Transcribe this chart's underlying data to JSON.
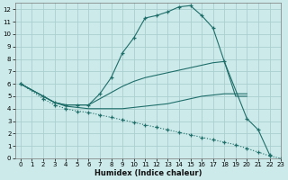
{
  "xlabel": "Humidex (Indice chaleur)",
  "bg_color": "#cdeaea",
  "grid_color": "#aacfcf",
  "line_color": "#1e6e6a",
  "xlim": [
    -0.5,
    23
  ],
  "ylim": [
    0,
    12.5
  ],
  "xticks": [
    0,
    1,
    2,
    3,
    4,
    5,
    6,
    7,
    8,
    9,
    10,
    11,
    12,
    13,
    14,
    15,
    16,
    17,
    18,
    19,
    20,
    21,
    22,
    23
  ],
  "yticks": [
    0,
    1,
    2,
    3,
    4,
    5,
    6,
    7,
    8,
    9,
    10,
    11,
    12
  ],
  "series": [
    {
      "x": [
        0,
        2,
        3,
        4,
        5,
        6,
        7,
        8,
        9,
        10,
        11,
        12,
        13,
        14,
        15,
        16,
        17,
        18,
        20,
        21,
        22
      ],
      "y": [
        6.0,
        5.0,
        4.5,
        4.3,
        4.3,
        4.3,
        5.2,
        6.5,
        8.5,
        9.7,
        11.3,
        11.5,
        11.8,
        12.2,
        12.3,
        11.5,
        10.5,
        7.8,
        3.2,
        2.3,
        0.3
      ],
      "marker": true,
      "dotted": false
    },
    {
      "x": [
        0,
        2,
        3,
        4,
        5,
        6,
        7,
        8,
        9,
        10,
        11,
        12,
        13,
        14,
        15,
        16,
        17,
        18,
        19,
        20
      ],
      "y": [
        6.0,
        5.0,
        4.5,
        4.3,
        4.3,
        4.3,
        4.8,
        5.3,
        5.8,
        6.2,
        6.5,
        6.7,
        6.9,
        7.1,
        7.3,
        7.5,
        7.7,
        7.8,
        5.0,
        5.0
      ],
      "marker": false,
      "dotted": false
    },
    {
      "x": [
        0,
        2,
        3,
        4,
        5,
        6,
        7,
        8,
        9,
        10,
        11,
        12,
        13,
        14,
        15,
        16,
        17,
        18,
        19,
        20
      ],
      "y": [
        6.0,
        5.0,
        4.5,
        4.2,
        4.1,
        4.0,
        4.0,
        4.0,
        4.0,
        4.1,
        4.2,
        4.3,
        4.4,
        4.6,
        4.8,
        5.0,
        5.1,
        5.2,
        5.2,
        5.2
      ],
      "marker": false,
      "dotted": false
    },
    {
      "x": [
        0,
        2,
        3,
        4,
        5,
        6,
        7,
        8,
        9,
        10,
        11,
        12,
        13,
        14,
        15,
        16,
        17,
        18,
        19,
        20,
        21,
        22,
        23
      ],
      "y": [
        6.0,
        4.8,
        4.3,
        4.0,
        3.8,
        3.7,
        3.5,
        3.3,
        3.1,
        2.9,
        2.7,
        2.5,
        2.3,
        2.1,
        1.9,
        1.7,
        1.5,
        1.3,
        1.1,
        0.8,
        0.5,
        0.2,
        0.0
      ],
      "marker": true,
      "dotted": true
    }
  ]
}
